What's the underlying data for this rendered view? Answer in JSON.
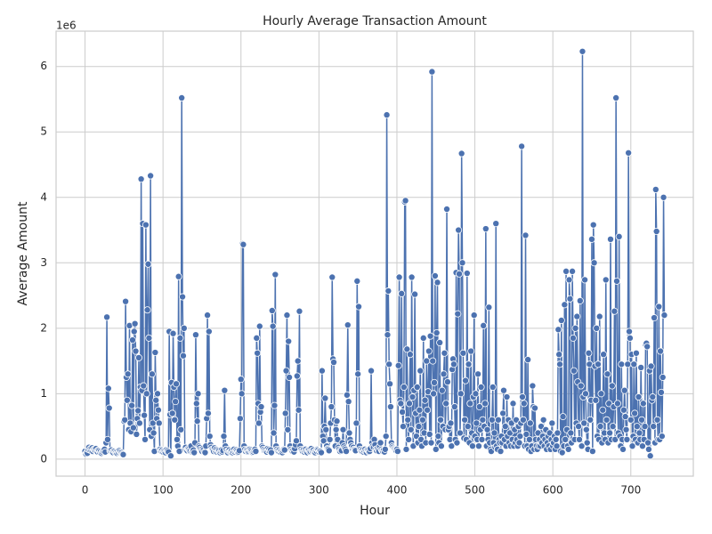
{
  "chart_data": {
    "type": "line",
    "title": "Hourly Average Transaction Amount",
    "x_label": "Hour",
    "y_label": "Average Amount",
    "y_offset_label": "1e6",
    "color": "#4c72b0",
    "grid": true,
    "xlim": [
      -37.15,
      780.15
    ],
    "xticks": [
      0,
      100,
      200,
      300,
      400,
      500,
      600,
      700
    ],
    "ylim": [
      -0.26,
      6.54
    ],
    "yticks": [
      0,
      1,
      2,
      3,
      4,
      5,
      6
    ],
    "x": [
      0,
      1,
      2,
      3,
      4,
      5,
      6,
      7,
      8,
      9,
      10,
      11,
      12,
      13,
      14,
      15,
      16,
      17,
      18,
      19,
      20,
      21,
      22,
      23,
      24,
      25,
      26,
      27,
      28,
      29,
      30,
      31,
      32,
      33,
      34,
      35,
      36,
      37,
      38,
      39,
      40,
      41,
      42,
      43,
      44,
      45,
      46,
      47,
      48,
      49,
      50,
      51,
      52,
      53,
      54,
      55,
      56,
      57,
      58,
      59,
      60,
      61,
      62,
      63,
      64,
      65,
      66,
      67,
      68,
      69,
      70,
      71,
      72,
      73,
      74,
      75,
      76,
      77,
      78,
      79,
      80,
      81,
      82,
      83,
      84,
      85,
      86,
      87,
      88,
      89,
      90,
      91,
      92,
      93,
      94,
      95,
      96,
      97,
      98,
      99,
      100,
      101,
      102,
      103,
      104,
      105,
      106,
      107,
      108,
      109,
      110,
      111,
      112,
      113,
      114,
      115,
      116,
      117,
      118,
      119,
      120,
      121,
      122,
      123,
      124,
      125,
      126,
      127,
      128,
      129,
      130,
      131,
      132,
      133,
      134,
      135,
      136,
      137,
      138,
      139,
      140,
      141,
      142,
      143,
      144,
      145,
      146,
      147,
      148,
      149,
      150,
      151,
      152,
      153,
      154,
      155,
      156,
      157,
      158,
      159,
      160,
      161,
      162,
      163,
      164,
      165,
      166,
      167,
      168,
      169,
      170,
      171,
      172,
      173,
      174,
      175,
      176,
      177,
      178,
      179,
      180,
      181,
      182,
      183,
      184,
      185,
      186,
      187,
      188,
      189,
      190,
      191,
      192,
      193,
      194,
      195,
      196,
      197,
      198,
      199,
      200,
      201,
      202,
      203,
      204,
      205,
      206,
      207,
      208,
      209,
      210,
      211,
      212,
      213,
      214,
      215,
      216,
      217,
      218,
      219,
      220,
      221,
      222,
      223,
      224,
      225,
      226,
      227,
      228,
      229,
      230,
      231,
      232,
      233,
      234,
      235,
      236,
      237,
      238,
      239,
      240,
      241,
      242,
      243,
      244,
      245,
      246,
      247,
      248,
      249,
      250,
      251,
      252,
      253,
      254,
      255,
      256,
      257,
      258,
      259,
      260,
      261,
      262,
      263,
      264,
      265,
      266,
      267,
      268,
      269,
      270,
      271,
      272,
      273,
      274,
      275,
      276,
      277,
      278,
      279,
      280,
      281,
      282,
      283,
      284,
      285,
      286,
      287,
      288,
      289,
      290,
      291,
      292,
      293,
      294,
      295,
      296,
      297,
      298,
      299,
      300,
      301,
      302,
      303,
      304,
      305,
      306,
      307,
      308,
      309,
      310,
      311,
      312,
      313,
      314,
      315,
      316,
      317,
      318,
      319,
      320,
      321,
      322,
      323,
      324,
      325,
      326,
      327,
      328,
      329,
      330,
      331,
      332,
      333,
      334,
      335,
      336,
      337,
      338,
      339,
      340,
      341,
      342,
      343,
      344,
      345,
      346,
      347,
      348,
      349,
      350,
      351,
      352,
      353,
      354,
      355,
      356,
      357,
      358,
      359,
      360,
      361,
      362,
      363,
      364,
      365,
      366,
      367,
      368,
      369,
      370,
      371,
      372,
      373,
      374,
      375,
      376,
      377,
      378,
      379,
      380,
      381,
      382,
      383,
      384,
      385,
      386,
      387,
      388,
      389,
      390,
      391,
      392,
      393,
      394,
      395,
      396,
      397,
      398,
      399,
      400,
      401,
      402,
      403,
      404,
      405,
      406,
      407,
      408,
      409,
      410,
      411,
      412,
      413,
      414,
      415,
      416,
      417,
      418,
      419,
      420,
      421,
      422,
      423,
      424,
      425,
      426,
      427,
      428,
      429,
      430,
      431,
      432,
      433,
      434,
      435,
      436,
      437,
      438,
      439,
      440,
      441,
      442,
      443,
      444,
      445,
      446,
      447,
      448,
      449,
      450,
      451,
      452,
      453,
      454,
      455,
      456,
      457,
      458,
      459,
      460,
      461,
      462,
      463,
      464,
      465,
      466,
      467,
      468,
      469,
      470,
      471,
      472,
      473,
      474,
      475,
      476,
      477,
      478,
      479,
      480,
      481,
      482,
      483,
      484,
      485,
      486,
      487,
      488,
      489,
      490,
      491,
      492,
      493,
      494,
      495,
      496,
      497,
      498,
      499,
      500,
      501,
      502,
      503,
      504,
      505,
      506,
      507,
      508,
      509,
      510,
      511,
      512,
      513,
      514,
      515,
      516,
      517,
      518,
      519,
      520,
      521,
      522,
      523,
      524,
      525,
      526,
      527,
      528,
      529,
      530,
      531,
      532,
      533,
      534,
      535,
      536,
      537,
      538,
      539,
      540,
      541,
      542,
      543,
      544,
      545,
      546,
      547,
      548,
      549,
      550,
      551,
      552,
      553,
      554,
      555,
      556,
      557,
      558,
      559,
      560,
      561,
      562,
      563,
      564,
      565,
      566,
      567,
      568,
      569,
      570,
      571,
      572,
      573,
      574,
      575,
      576,
      577,
      578,
      579,
      580,
      581,
      582,
      583,
      584,
      585,
      586,
      587,
      588,
      589,
      590,
      591,
      592,
      593,
      594,
      595,
      596,
      597,
      598,
      599,
      600,
      601,
      602,
      603,
      604,
      605,
      606,
      607,
      608,
      609,
      610,
      611,
      612,
      613,
      614,
      615,
      616,
      617,
      618,
      619,
      620,
      621,
      622,
      623,
      624,
      625,
      626,
      627,
      628,
      629,
      630,
      631,
      632,
      633,
      634,
      635,
      636,
      637,
      638,
      639,
      640,
      641,
      642,
      643,
      644,
      645,
      646,
      647,
      648,
      649,
      650,
      651,
      652,
      653,
      654,
      655,
      656,
      657,
      658,
      659,
      660,
      661,
      662,
      663,
      664,
      665,
      666,
      667,
      668,
      669,
      670,
      671,
      672,
      673,
      674,
      675,
      676,
      677,
      678,
      679,
      680,
      681,
      682,
      683,
      684,
      685,
      686,
      687,
      688,
      689,
      690,
      691,
      692,
      693,
      694,
      695,
      696,
      697,
      698,
      699,
      700,
      701,
      702,
      703,
      704,
      705,
      706,
      707,
      708,
      709,
      710,
      711,
      712,
      713,
      714,
      715,
      716,
      717,
      718,
      719,
      720,
      721,
      722,
      723,
      724,
      725,
      726,
      727,
      728,
      729,
      730,
      731,
      732,
      733,
      734,
      735,
      736,
      737,
      738,
      739,
      740,
      741,
      742,
      743
    ],
    "values": [
      0.12,
      0.08,
      0.1,
      0.09,
      0.15,
      0.18,
      0.14,
      0.16,
      0.13,
      0.17,
      0.12,
      0.15,
      0.14,
      0.13,
      0.16,
      0.12,
      0.11,
      0.14,
      0.13,
      0.1,
      0.12,
      0.09,
      0.11,
      0.13,
      0.12,
      0.15,
      0.11,
      0.25,
      2.17,
      0.3,
      1.08,
      0.78,
      0.13,
      0.12,
      0.14,
      0.11,
      0.1,
      0.13,
      0.12,
      0.1,
      0.11,
      0.09,
      0.12,
      0.1,
      0.13,
      0.11,
      0.09,
      0.1,
      0.08,
      0.07,
      0.58,
      0.6,
      2.41,
      1.25,
      0.9,
      1.3,
      0.45,
      2.04,
      0.55,
      0.42,
      0.82,
      1.82,
      0.48,
      1.95,
      2.07,
      1.65,
      0.38,
      0.62,
      0.74,
      1.55,
      0.55,
      1.1,
      4.28,
      1.05,
      3.6,
      1.12,
      0.67,
      0.3,
      3.58,
      1.0,
      2.28,
      2.98,
      1.85,
      0.45,
      4.33,
      0.35,
      1.3,
      0.55,
      0.4,
      0.12,
      1.63,
      0.9,
      0.62,
      1.0,
      0.75,
      0.55,
      0.15,
      0.13,
      0.12,
      0.14,
      0.11,
      0.13,
      0.12,
      0.1,
      0.14,
      0.12,
      0.13,
      0.11,
      1.95,
      0.68,
      0.05,
      1.17,
      0.7,
      1.92,
      1.1,
      0.6,
      0.88,
      1.15,
      0.3,
      0.2,
      2.79,
      0.12,
      1.85,
      0.45,
      5.52,
      2.48,
      1.58,
      2.0,
      0.15,
      0.18,
      0.14,
      0.13,
      0.16,
      0.15,
      0.13,
      0.12,
      0.2,
      0.11,
      0.12,
      0.14,
      0.1,
      0.25,
      1.9,
      0.85,
      0.58,
      1.0,
      0.2,
      0.18,
      0.15,
      0.13,
      0.12,
      0.16,
      0.14,
      0.11,
      0.1,
      0.2,
      0.62,
      2.2,
      0.7,
      1.95,
      0.35,
      0.22,
      0.18,
      0.15,
      0.14,
      0.12,
      0.17,
      0.13,
      0.15,
      0.11,
      0.14,
      0.12,
      0.13,
      0.1,
      0.12,
      0.14,
      0.11,
      0.13,
      0.35,
      1.05,
      0.2,
      0.15,
      0.12,
      0.1,
      0.13,
      0.14,
      0.11,
      0.12,
      0.13,
      0.1,
      0.12,
      0.15,
      0.11,
      0.13,
      0.14,
      0.12,
      0.1,
      0.11,
      0.13,
      0.62,
      1.22,
      1.0,
      3.29,
      3.28,
      0.2,
      0.15,
      0.12,
      0.14,
      0.13,
      0.11,
      0.12,
      0.15,
      0.13,
      0.14,
      0.12,
      0.1,
      0.11,
      0.13,
      0.15,
      0.12,
      1.85,
      1.62,
      0.85,
      0.55,
      2.03,
      0.72,
      0.8,
      0.2,
      0.18,
      0.15,
      0.13,
      0.14,
      0.12,
      0.11,
      0.16,
      0.13,
      0.15,
      0.12,
      0.14,
      0.1,
      2.27,
      2.03,
      0.4,
      0.82,
      2.82,
      0.2,
      0.15,
      0.13,
      0.12,
      0.14,
      0.11,
      0.13,
      0.12,
      0.1,
      0.13,
      0.15,
      0.14,
      0.7,
      1.35,
      2.2,
      0.45,
      1.8,
      1.25,
      0.2,
      0.15,
      0.13,
      0.12,
      0.14,
      0.11,
      0.16,
      0.22,
      0.28,
      1.27,
      1.5,
      0.75,
      2.26,
      0.2,
      0.15,
      0.13,
      0.12,
      0.14,
      0.11,
      0.13,
      0.15,
      0.12,
      0.1,
      0.14,
      0.13,
      0.11,
      0.12,
      0.16,
      0.13,
      0.12,
      0.14,
      0.11,
      0.1,
      0.13,
      0.12,
      0.15,
      0.14,
      0.11,
      0.13,
      0.12,
      0.1,
      1.35,
      0.35,
      0.28,
      0.5,
      0.93,
      0.45,
      0.2,
      0.16,
      0.15,
      0.13,
      0.3,
      0.55,
      0.8,
      2.78,
      1.53,
      1.48,
      0.6,
      0.2,
      0.45,
      0.58,
      0.3,
      0.18,
      0.15,
      0.12,
      0.14,
      0.13,
      0.25,
      0.45,
      0.2,
      0.17,
      0.15,
      0.12,
      0.98,
      2.05,
      0.88,
      0.4,
      0.3,
      0.25,
      0.2,
      0.16,
      0.18,
      0.15,
      0.14,
      0.13,
      0.55,
      2.72,
      1.3,
      2.33,
      0.2,
      0.15,
      0.13,
      0.12,
      0.14,
      0.11,
      0.13,
      0.15,
      0.12,
      0.1,
      0.14,
      0.13,
      0.11,
      0.12,
      0.16,
      1.35,
      0.25,
      0.2,
      0.18,
      0.3,
      0.22,
      0.15,
      0.13,
      0.16,
      0.14,
      0.12,
      0.2,
      0.25,
      0.15,
      0.13,
      0.12,
      0.14,
      0.11,
      0.15,
      0.35,
      5.26,
      1.9,
      2.57,
      1.45,
      1.15,
      0.8,
      0.25,
      0.2,
      0.18,
      0.16,
      0.15,
      0.14,
      0.13,
      0.15,
      0.12,
      1.43,
      2.78,
      0.9,
      0.85,
      2.53,
      0.72,
      0.5,
      1.1,
      3.93,
      3.95,
      0.15,
      1.68,
      0.6,
      0.3,
      0.85,
      1.6,
      0.45,
      2.78,
      0.95,
      0.2,
      1.05,
      2.52,
      0.7,
      0.35,
      1.1,
      0.25,
      0.5,
      0.75,
      1.35,
      0.3,
      0.2,
      0.6,
      1.85,
      0.4,
      0.9,
      0.25,
      1.5,
      0.75,
      1.03,
      1.65,
      0.38,
      1.88,
      0.25,
      5.92,
      1.5,
      1.0,
      1.17,
      2.8,
      0.15,
      1.93,
      2.7,
      0.35,
      0.25,
      1.78,
      0.6,
      0.2,
      1.05,
      0.5,
      1.3,
      1.62,
      0.45,
      0.85,
      3.82,
      1.18,
      0.45,
      0.5,
      0.3,
      0.55,
      0.2,
      1.37,
      1.53,
      1.45,
      0.8,
      0.3,
      2.85,
      0.25,
      2.22,
      3.5,
      2.83,
      0.4,
      1.0,
      4.67,
      3.0,
      1.62,
      0.32,
      0.6,
      1.2,
      0.3,
      2.84,
      0.5,
      1.45,
      0.25,
      0.85,
      1.65,
      0.4,
      0.2,
      0.95,
      2.2,
      0.35,
      1.0,
      0.55,
      0.3,
      1.3,
      0.2,
      0.8,
      0.45,
      1.1,
      0.3,
      0.6,
      2.04,
      0.5,
      0.85,
      3.52,
      0.2,
      0.45,
      0.3,
      2.32,
      0.25,
      0.15,
      0.12,
      0.6,
      1.1,
      0.25,
      0.4,
      0.18,
      3.6,
      0.2,
      0.15,
      0.6,
      0.3,
      0.25,
      0.12,
      0.35,
      0.25,
      0.7,
      1.05,
      0.3,
      0.5,
      0.2,
      0.95,
      0.35,
      0.6,
      0.25,
      0.4,
      0.2,
      0.55,
      0.3,
      0.85,
      0.2,
      0.45,
      0.25,
      0.6,
      0.3,
      0.2,
      0.5,
      0.25,
      0.35,
      0.55,
      4.78,
      0.95,
      0.6,
      0.85,
      0.2,
      3.42,
      0.38,
      0.2,
      1.52,
      0.15,
      0.3,
      0.55,
      0.12,
      0.2,
      1.12,
      0.8,
      0.15,
      0.78,
      0.3,
      0.2,
      0.15,
      0.4,
      0.2,
      0.3,
      0.2,
      0.5,
      0.25,
      0.35,
      0.6,
      0.2,
      0.3,
      0.45,
      0.15,
      0.25,
      0.35,
      0.2,
      0.4,
      0.15,
      0.3,
      0.55,
      0.2,
      0.25,
      0.35,
      0.15,
      0.3,
      0.2,
      0.4,
      1.98,
      1.6,
      1.45,
      0.12,
      2.12,
      0.1,
      0.65,
      0.2,
      2.36,
      0.3,
      2.87,
      0.45,
      0.2,
      0.15,
      2.74,
      2.45,
      0.4,
      0.25,
      2.87,
      1.85,
      1.35,
      0.3,
      2.0,
      0.55,
      2.18,
      1.18,
      0.5,
      0.3,
      2.42,
      1.12,
      0.2,
      6.23,
      0.95,
      0.55,
      2.74,
      1.0,
      0.45,
      0.25,
      0.15,
      1.62,
      1.45,
      0.6,
      0.9,
      3.36,
      0.12,
      3.58,
      3.0,
      1.42,
      0.9,
      2.0,
      0.35,
      1.45,
      0.3,
      2.18,
      0.5,
      1.0,
      0.25,
      0.75,
      1.6,
      0.4,
      0.3,
      2.74,
      0.6,
      1.3,
      0.25,
      0.85,
      0.4,
      3.36,
      0.3,
      1.12,
      0.5,
      0.8,
      2.26,
      0.3,
      5.52,
      2.72,
      0.85,
      0.4,
      3.4,
      0.35,
      0.2,
      1.45,
      0.3,
      0.15,
      0.75,
      1.05,
      0.65,
      0.45,
      0.3,
      1.45,
      4.68,
      1.95,
      1.85,
      0.6,
      1.6,
      0.2,
      0.35,
      1.45,
      0.7,
      0.3,
      1.62,
      0.5,
      0.25,
      0.95,
      0.4,
      0.3,
      1.4,
      0.6,
      0.2,
      0.85,
      0.3,
      0.5,
      1.75,
      1.77,
      1.72,
      0.25,
      0.15,
      1.35,
      0.05,
      1.42,
      0.9,
      0.95,
      0.5,
      2.16,
      0.25,
      4.12,
      3.48,
      0.6,
      0.3,
      2.33,
      0.3,
      1.65,
      1.02,
      0.35,
      1.25,
      4.0,
      2.2
    ]
  }
}
